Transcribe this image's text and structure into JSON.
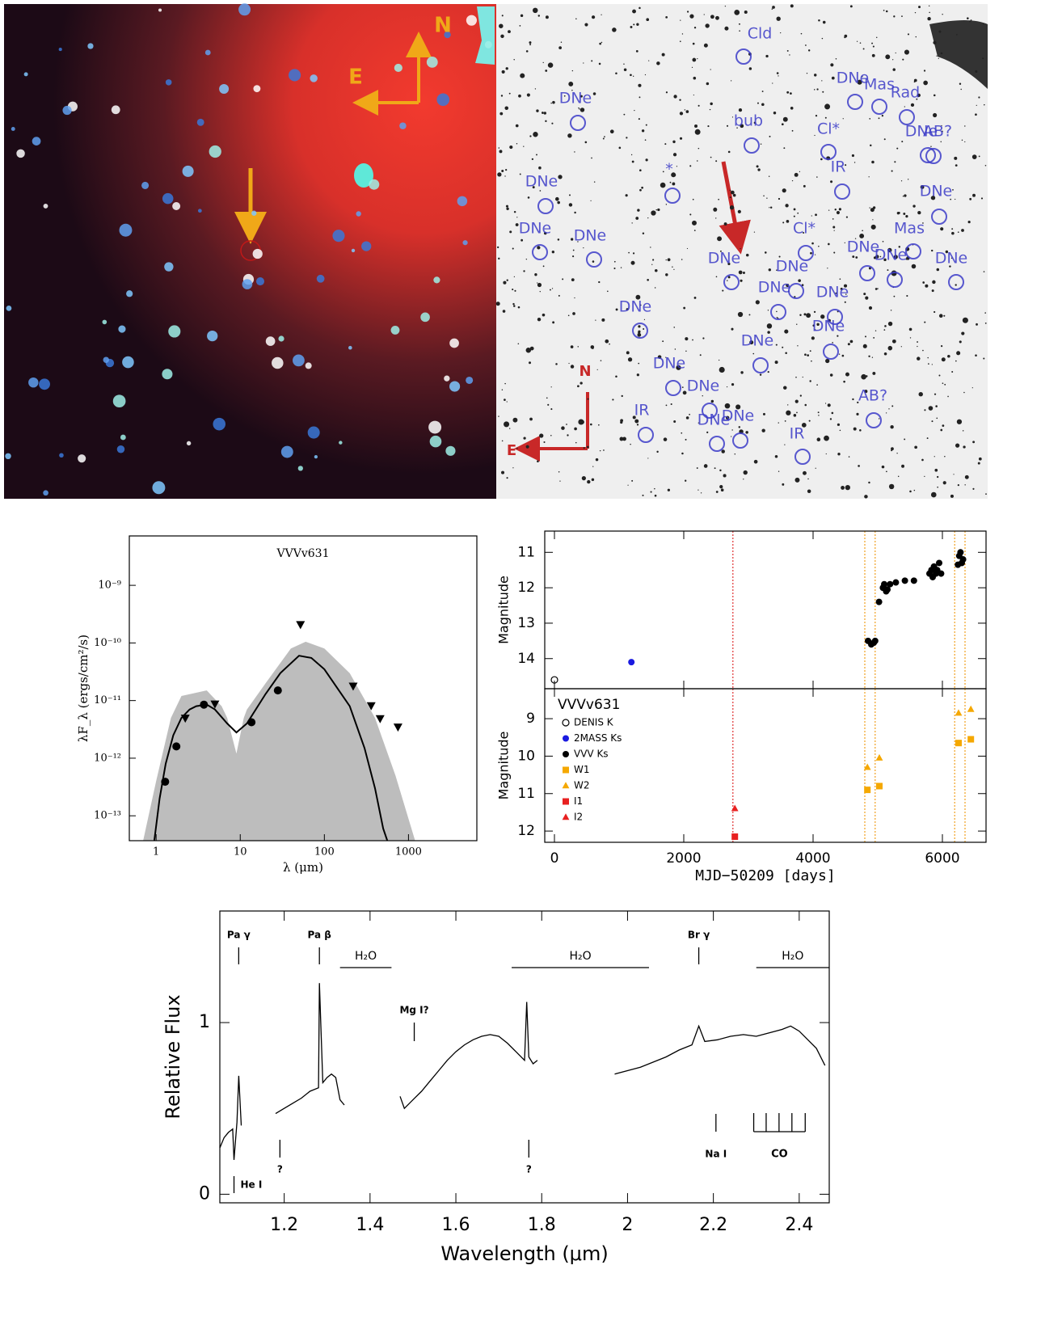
{
  "images": [
    {
      "labels": [
        "N",
        "E"
      ]
    },
    {
      "labels": [
        "Cld",
        "DNe",
        "bub",
        "DNe",
        "Mas",
        "Rad",
        "Cl*",
        "DNe",
        "AB?",
        "IR",
        "DNe",
        "*",
        "DNe",
        "DNe",
        "DNe",
        "Mas",
        "Cl*",
        "DNe",
        "DNe",
        "DNe",
        "DNe",
        "DNe",
        "DNe",
        "DNe",
        "DNe",
        "DNe",
        "DNe",
        "DNe",
        "DNe",
        "DNe",
        "DNe",
        "IR",
        "IR",
        "AB?"
      ],
      "compass": [
        "N",
        "E"
      ]
    }
  ],
  "chart_data": [
    {
      "type": "sed",
      "title": "VVVv631",
      "xlabel": "λ (μm)",
      "ylabel": "λF_λ (ergs/cm²/s)",
      "xscale": "log",
      "yscale": "log",
      "xlim": [
        0.48,
        6500
      ],
      "ylim": [
        3.7e-14,
        7.2e-09
      ],
      "xticks": [
        1,
        10,
        100,
        1000
      ],
      "yticks": [
        {
          "value": 1e-09,
          "label": "10⁻⁹"
        },
        {
          "value": 1e-10,
          "label": "10⁻¹⁰"
        },
        {
          "value": 1e-11,
          "label": "10⁻¹¹"
        },
        {
          "value": 1e-12,
          "label": "10⁻¹²"
        },
        {
          "value": 1e-13,
          "label": "10⁻¹³"
        }
      ],
      "series": [
        {
          "kind": "area",
          "color": "#bdbdbd",
          "x": [
            0.7,
            1,
            1.5,
            2,
            4,
            6,
            7,
            9,
            11,
            12,
            20,
            40,
            60,
            100,
            200,
            400,
            700,
            1200
          ],
          "values": [
            3.7e-14,
            4e-13,
            5e-12,
            1.2e-11,
            1.5e-11,
            8e-12,
            5e-12,
            1.2e-12,
            5e-12,
            7e-12,
            2e-11,
            8e-11,
            1.05e-10,
            8e-11,
            3e-11,
            5e-12,
            5e-13,
            3.7e-14
          ]
        },
        {
          "kind": "line",
          "color": "#000000",
          "x": [
            0.95,
            1.1,
            1.3,
            1.6,
            2,
            2.5,
            3,
            4,
            5,
            7,
            9,
            12,
            20,
            30,
            50,
            70,
            100,
            200,
            300,
            400,
            500,
            560
          ],
          "values": [
            3.7e-14,
            2e-13,
            8e-13,
            2.5e-12,
            5e-12,
            7e-12,
            8e-12,
            8.5e-12,
            7e-12,
            4e-12,
            2.8e-12,
            4e-12,
            1.3e-11,
            3e-11,
            6e-11,
            5.5e-11,
            3.5e-11,
            8e-12,
            1.5e-12,
            3e-13,
            6e-14,
            3.7e-14
          ]
        },
        {
          "kind": "points",
          "marker": "circle",
          "color": "#000000",
          "x": [
            1.28,
            1.74,
            3.7,
            13.6,
            28
          ],
          "values": [
            3.9e-13,
            1.6e-12,
            8.5e-12,
            4.2e-12,
            1.5e-11
          ]
        },
        {
          "kind": "points",
          "marker": "triangle-down",
          "color": "#000000",
          "x": [
            2.22,
            5.0,
            52,
            220,
            360,
            460,
            750
          ],
          "values": [
            5e-12,
            8.8e-12,
            2.1e-10,
            1.8e-11,
            8.2e-12,
            4.9e-12,
            3.5e-12
          ]
        }
      ]
    },
    {
      "type": "scatter",
      "xlabel": "MJD−50209 [days]",
      "xlim": [
        -150,
        6675
      ],
      "xticks": [
        0,
        2000,
        4000,
        6000
      ],
      "legend": "upper left",
      "legend_panel": 1,
      "legend_title": "VVVv631",
      "panels": [
        {
          "ylabel": "Magnitude",
          "ylim": [
            14.85,
            10.4
          ],
          "yticks": [
            11,
            12,
            13,
            14
          ]
        },
        {
          "ylabel": "Magnitude",
          "ylim": [
            12.3,
            8.2
          ],
          "yticks": [
            9,
            10,
            11,
            12
          ]
        }
      ],
      "vlines": [
        {
          "x": 2760,
          "color": "#e03030"
        },
        {
          "x": 4800,
          "color": "#f0a020"
        },
        {
          "x": 4960,
          "color": "#f0a020"
        },
        {
          "x": 6190,
          "color": "#f0a020"
        },
        {
          "x": 6350,
          "color": "#f0a020"
        }
      ],
      "series": [
        {
          "name": "DENIS K",
          "marker": "open-circle",
          "upper_limit": true,
          "color": "#000000",
          "panel": 0,
          "x": [
            0
          ],
          "values": [
            14.6
          ]
        },
        {
          "name": "2MASS Ks",
          "marker": "circle",
          "color": "#1a1ae0",
          "panel": 0,
          "x": [
            1190
          ],
          "values": [
            14.1
          ]
        },
        {
          "name": "VVV Ks",
          "marker": "circle",
          "color": "#000000",
          "panel": 0,
          "x": [
            4850,
            4900,
            4940,
            4960,
            5020,
            5080,
            5100,
            5130,
            5150,
            5190,
            5280,
            5420,
            5560,
            5800,
            5830,
            5850,
            5870,
            5900,
            5920,
            5950,
            5980,
            6240,
            6260,
            6280,
            6300,
            6320
          ],
          "values": [
            13.5,
            13.6,
            13.55,
            13.5,
            12.4,
            12.0,
            11.9,
            12.1,
            12.05,
            11.9,
            11.85,
            11.8,
            11.8,
            11.6,
            11.5,
            11.7,
            11.4,
            11.6,
            11.5,
            11.3,
            11.6,
            11.35,
            11.1,
            11.0,
            11.3,
            11.2
          ]
        },
        {
          "name": "W1",
          "marker": "square",
          "color": "#f5a800",
          "panel": 1,
          "x": [
            4840,
            5025,
            6250,
            6440
          ],
          "values": [
            10.9,
            10.8,
            9.65,
            9.55
          ]
        },
        {
          "name": "W2",
          "marker": "triangle",
          "color": "#f5a800",
          "panel": 1,
          "x": [
            4840,
            5025,
            6250,
            6440
          ],
          "values": [
            10.3,
            10.05,
            8.85,
            8.75
          ]
        },
        {
          "name": "I1",
          "marker": "square",
          "color": "#e82020",
          "panel": 1,
          "x": [
            2790
          ],
          "values": [
            12.15
          ]
        },
        {
          "name": "I2",
          "marker": "triangle",
          "color": "#e82020",
          "panel": 1,
          "x": [
            2790
          ],
          "values": [
            11.4
          ]
        }
      ]
    },
    {
      "type": "line",
      "xlabel": "Wavelength (μm)",
      "ylabel": "Relative Flux",
      "color": "#000000",
      "xlim": [
        1.05,
        2.47
      ],
      "ylim": [
        -0.05,
        1.65
      ],
      "xticks": [
        1.2,
        1.4,
        1.6,
        1.8,
        2.0,
        2.2,
        2.4
      ],
      "yticks": [
        0,
        1
      ],
      "x": [
        1.05,
        1.06,
        1.07,
        1.08,
        1.083,
        1.09,
        1.094,
        1.1,
        1.14,
        1.18,
        1.2,
        1.22,
        1.24,
        1.26,
        1.28,
        1.282,
        1.29,
        1.3,
        1.31,
        1.32,
        1.33,
        1.34,
        1.4,
        1.47,
        1.48,
        1.5,
        1.52,
        1.54,
        1.56,
        1.58,
        1.6,
        1.62,
        1.64,
        1.66,
        1.68,
        1.7,
        1.72,
        1.74,
        1.76,
        1.765,
        1.77,
        1.78,
        1.79,
        1.88,
        1.97,
        2.0,
        2.03,
        2.06,
        2.09,
        2.12,
        2.15,
        2.166,
        2.18,
        2.21,
        2.24,
        2.27,
        2.3,
        2.33,
        2.36,
        2.38,
        2.4,
        2.42,
        2.44,
        2.46
      ],
      "values": [
        0.27,
        0.33,
        0.36,
        0.38,
        0.2,
        0.42,
        0.69,
        0.4,
        null,
        0.47,
        0.5,
        0.53,
        0.56,
        0.6,
        0.62,
        1.23,
        0.65,
        0.68,
        0.7,
        0.68,
        0.55,
        0.52,
        null,
        0.57,
        0.5,
        0.55,
        0.6,
        0.66,
        0.72,
        0.78,
        0.83,
        0.87,
        0.9,
        0.92,
        0.93,
        0.92,
        0.88,
        0.83,
        0.78,
        1.12,
        0.8,
        0.76,
        0.78,
        null,
        0.7,
        0.72,
        0.74,
        0.77,
        0.8,
        0.84,
        0.87,
        0.98,
        0.89,
        0.9,
        0.92,
        0.93,
        0.92,
        0.94,
        0.96,
        0.98,
        0.95,
        0.9,
        0.85,
        0.75
      ],
      "annotations": [
        {
          "label": "Pa γ",
          "x": 1.094,
          "side": "top"
        },
        {
          "label": "Pa β",
          "x": 1.282,
          "side": "top"
        },
        {
          "label": "Br γ",
          "x": 2.166,
          "side": "top"
        },
        {
          "label": "Mg I?",
          "x": 1.503,
          "side": "mid"
        },
        {
          "label": "He I",
          "x": 1.083,
          "side": "base"
        },
        {
          "label": "?",
          "x": 1.19,
          "side": "bottom"
        },
        {
          "label": "?",
          "x": 1.77,
          "side": "bottom"
        },
        {
          "label": "Na I",
          "x": 2.206,
          "side": "low"
        }
      ],
      "bands": [
        {
          "label": "H₂O",
          "x": [
            1.33,
            1.45
          ]
        },
        {
          "label": "H₂O",
          "x": [
            1.73,
            2.05
          ]
        },
        {
          "label": "H₂O",
          "x": [
            2.3,
            2.47
          ]
        }
      ],
      "co": {
        "label": "CO",
        "x": [
          2.294,
          2.323,
          2.353,
          2.383,
          2.414
        ]
      }
    }
  ]
}
